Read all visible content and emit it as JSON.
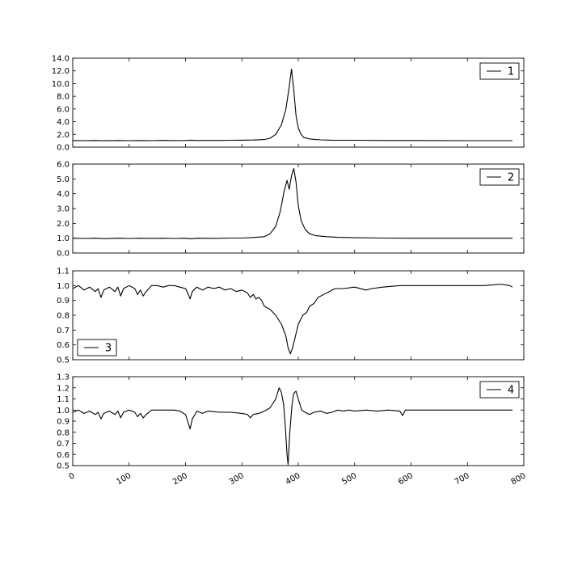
{
  "chart_data": [
    {
      "type": "line",
      "ylim": [
        0,
        14
      ],
      "yticks": [
        "0.0",
        "2.0",
        "4.0",
        "6.0",
        "8.0",
        "10.0",
        "12.0",
        "14.0"
      ],
      "legend_position": "top-right",
      "series": [
        {
          "name": "1",
          "color": "#000000",
          "points": [
            [
              0,
              1.05
            ],
            [
              20,
              1.02
            ],
            [
              40,
              1.05
            ],
            [
              60,
              1.0
            ],
            [
              80,
              1.04
            ],
            [
              100,
              1.02
            ],
            [
              120,
              1.05
            ],
            [
              140,
              1.02
            ],
            [
              160,
              1.06
            ],
            [
              180,
              1.03
            ],
            [
              200,
              1.05
            ],
            [
              210,
              1.1
            ],
            [
              220,
              1.05
            ],
            [
              240,
              1.06
            ],
            [
              260,
              1.05
            ],
            [
              280,
              1.08
            ],
            [
              300,
              1.1
            ],
            [
              320,
              1.12
            ],
            [
              340,
              1.2
            ],
            [
              350,
              1.4
            ],
            [
              360,
              2.0
            ],
            [
              370,
              3.5
            ],
            [
              378,
              6.0
            ],
            [
              384,
              9.5
            ],
            [
              388,
              12.3
            ],
            [
              392,
              9.0
            ],
            [
              396,
              5.0
            ],
            [
              400,
              3.0
            ],
            [
              405,
              2.0
            ],
            [
              410,
              1.5
            ],
            [
              420,
              1.3
            ],
            [
              430,
              1.2
            ],
            [
              440,
              1.15
            ],
            [
              460,
              1.1
            ],
            [
              500,
              1.08
            ],
            [
              550,
              1.05
            ],
            [
              600,
              1.04
            ],
            [
              650,
              1.03
            ],
            [
              700,
              1.02
            ],
            [
              750,
              1.02
            ],
            [
              780,
              1.02
            ]
          ]
        }
      ]
    },
    {
      "type": "line",
      "ylim": [
        0,
        6
      ],
      "yticks": [
        "0.0",
        "1.0",
        "2.0",
        "3.0",
        "4.0",
        "5.0",
        "6.0"
      ],
      "legend_position": "top-right",
      "series": [
        {
          "name": "2",
          "color": "#000000",
          "points": [
            [
              0,
              1.0
            ],
            [
              20,
              0.98
            ],
            [
              40,
              1.0
            ],
            [
              60,
              0.97
            ],
            [
              80,
              1.0
            ],
            [
              100,
              0.98
            ],
            [
              120,
              1.0
            ],
            [
              140,
              0.99
            ],
            [
              160,
              1.0
            ],
            [
              180,
              0.98
            ],
            [
              200,
              1.0
            ],
            [
              210,
              0.96
            ],
            [
              220,
              1.0
            ],
            [
              250,
              0.99
            ],
            [
              280,
              1.01
            ],
            [
              300,
              1.01
            ],
            [
              320,
              1.05
            ],
            [
              340,
              1.1
            ],
            [
              350,
              1.3
            ],
            [
              360,
              1.8
            ],
            [
              368,
              2.8
            ],
            [
              375,
              4.2
            ],
            [
              380,
              4.9
            ],
            [
              384,
              4.3
            ],
            [
              388,
              5.2
            ],
            [
              392,
              5.7
            ],
            [
              396,
              4.8
            ],
            [
              400,
              3.2
            ],
            [
              405,
              2.2
            ],
            [
              412,
              1.6
            ],
            [
              420,
              1.3
            ],
            [
              430,
              1.18
            ],
            [
              450,
              1.1
            ],
            [
              470,
              1.06
            ],
            [
              500,
              1.03
            ],
            [
              550,
              1.01
            ],
            [
              600,
              1.0
            ],
            [
              700,
              1.0
            ],
            [
              780,
              1.0
            ]
          ]
        }
      ]
    },
    {
      "type": "line",
      "ylim": [
        0.5,
        1.1
      ],
      "yticks": [
        "0.5",
        "0.6",
        "0.7",
        "0.8",
        "0.9",
        "1.0",
        "1.1"
      ],
      "legend_position": "bottom-left",
      "series": [
        {
          "name": "3",
          "color": "#000000",
          "points": [
            [
              0,
              0.98
            ],
            [
              10,
              1.0
            ],
            [
              20,
              0.97
            ],
            [
              30,
              0.99
            ],
            [
              40,
              0.96
            ],
            [
              45,
              0.98
            ],
            [
              50,
              0.92
            ],
            [
              55,
              0.97
            ],
            [
              65,
              0.99
            ],
            [
              75,
              0.96
            ],
            [
              80,
              0.99
            ],
            [
              85,
              0.93
            ],
            [
              90,
              0.98
            ],
            [
              100,
              1.0
            ],
            [
              110,
              0.98
            ],
            [
              115,
              0.94
            ],
            [
              120,
              0.97
            ],
            [
              125,
              0.93
            ],
            [
              130,
              0.96
            ],
            [
              140,
              1.0
            ],
            [
              150,
              1.0
            ],
            [
              160,
              0.99
            ],
            [
              170,
              1.0
            ],
            [
              180,
              1.0
            ],
            [
              190,
              0.99
            ],
            [
              200,
              0.98
            ],
            [
              205,
              0.94
            ],
            [
              208,
              0.91
            ],
            [
              212,
              0.96
            ],
            [
              220,
              0.99
            ],
            [
              230,
              0.97
            ],
            [
              240,
              0.99
            ],
            [
              250,
              0.98
            ],
            [
              260,
              0.99
            ],
            [
              270,
              0.97
            ],
            [
              280,
              0.98
            ],
            [
              290,
              0.96
            ],
            [
              300,
              0.97
            ],
            [
              310,
              0.95
            ],
            [
              315,
              0.92
            ],
            [
              320,
              0.94
            ],
            [
              325,
              0.91
            ],
            [
              330,
              0.92
            ],
            [
              335,
              0.9
            ],
            [
              340,
              0.86
            ],
            [
              350,
              0.84
            ],
            [
              360,
              0.8
            ],
            [
              370,
              0.74
            ],
            [
              378,
              0.66
            ],
            [
              382,
              0.58
            ],
            [
              386,
              0.54
            ],
            [
              390,
              0.58
            ],
            [
              395,
              0.66
            ],
            [
              400,
              0.74
            ],
            [
              408,
              0.8
            ],
            [
              415,
              0.82
            ],
            [
              420,
              0.86
            ],
            [
              428,
              0.88
            ],
            [
              435,
              0.92
            ],
            [
              445,
              0.94
            ],
            [
              455,
              0.96
            ],
            [
              465,
              0.98
            ],
            [
              480,
              0.98
            ],
            [
              500,
              0.99
            ],
            [
              520,
              0.97
            ],
            [
              530,
              0.98
            ],
            [
              550,
              0.99
            ],
            [
              580,
              1.0
            ],
            [
              600,
              1.0
            ],
            [
              620,
              1.0
            ],
            [
              650,
              1.0
            ],
            [
              680,
              1.0
            ],
            [
              700,
              1.0
            ],
            [
              730,
              1.0
            ],
            [
              760,
              1.01
            ],
            [
              775,
              1.0
            ],
            [
              780,
              0.99
            ]
          ]
        }
      ]
    },
    {
      "type": "line",
      "ylim": [
        0.5,
        1.3
      ],
      "yticks": [
        "0.5",
        "0.6",
        "0.7",
        "0.8",
        "0.9",
        "1.0",
        "1.1",
        "1.2",
        "1.3"
      ],
      "legend_position": "top-right",
      "series": [
        {
          "name": "4",
          "color": "#000000",
          "points": [
            [
              0,
              0.98
            ],
            [
              10,
              1.0
            ],
            [
              20,
              0.97
            ],
            [
              30,
              0.99
            ],
            [
              40,
              0.96
            ],
            [
              45,
              0.98
            ],
            [
              50,
              0.92
            ],
            [
              55,
              0.97
            ],
            [
              65,
              0.99
            ],
            [
              75,
              0.96
            ],
            [
              80,
              0.99
            ],
            [
              85,
              0.93
            ],
            [
              90,
              0.98
            ],
            [
              100,
              1.0
            ],
            [
              110,
              0.98
            ],
            [
              115,
              0.94
            ],
            [
              120,
              0.97
            ],
            [
              125,
              0.93
            ],
            [
              130,
              0.96
            ],
            [
              140,
              1.0
            ],
            [
              150,
              1.0
            ],
            [
              160,
              1.0
            ],
            [
              170,
              1.0
            ],
            [
              180,
              1.0
            ],
            [
              190,
              0.99
            ],
            [
              200,
              0.96
            ],
            [
              205,
              0.88
            ],
            [
              208,
              0.83
            ],
            [
              212,
              0.92
            ],
            [
              220,
              0.99
            ],
            [
              230,
              0.97
            ],
            [
              240,
              0.99
            ],
            [
              260,
              0.98
            ],
            [
              280,
              0.98
            ],
            [
              300,
              0.97
            ],
            [
              310,
              0.96
            ],
            [
              315,
              0.93
            ],
            [
              320,
              0.96
            ],
            [
              330,
              0.97
            ],
            [
              340,
              0.99
            ],
            [
              350,
              1.02
            ],
            [
              360,
              1.1
            ],
            [
              366,
              1.2
            ],
            [
              370,
              1.16
            ],
            [
              374,
              1.05
            ],
            [
              377,
              0.85
            ],
            [
              380,
              0.6
            ],
            [
              382,
              0.51
            ],
            [
              385,
              0.8
            ],
            [
              389,
              1.05
            ],
            [
              392,
              1.15
            ],
            [
              396,
              1.17
            ],
            [
              400,
              1.1
            ],
            [
              406,
              1.0
            ],
            [
              412,
              0.98
            ],
            [
              420,
              0.96
            ],
            [
              428,
              0.98
            ],
            [
              440,
              0.99
            ],
            [
              450,
              0.97
            ],
            [
              460,
              0.98
            ],
            [
              470,
              1.0
            ],
            [
              480,
              0.99
            ],
            [
              490,
              1.0
            ],
            [
              500,
              0.99
            ],
            [
              520,
              1.0
            ],
            [
              540,
              0.99
            ],
            [
              560,
              1.0
            ],
            [
              580,
              0.99
            ],
            [
              585,
              0.95
            ],
            [
              590,
              1.0
            ],
            [
              600,
              1.0
            ],
            [
              620,
              1.0
            ],
            [
              650,
              1.0
            ],
            [
              680,
              1.0
            ],
            [
              700,
              1.0
            ],
            [
              730,
              1.0
            ],
            [
              760,
              1.0
            ],
            [
              780,
              1.0
            ]
          ]
        }
      ]
    }
  ],
  "x_axis": {
    "xlim": [
      0,
      800
    ],
    "ticks": [
      "0",
      "100",
      "200",
      "300",
      "400",
      "500",
      "600",
      "700",
      "800"
    ]
  }
}
